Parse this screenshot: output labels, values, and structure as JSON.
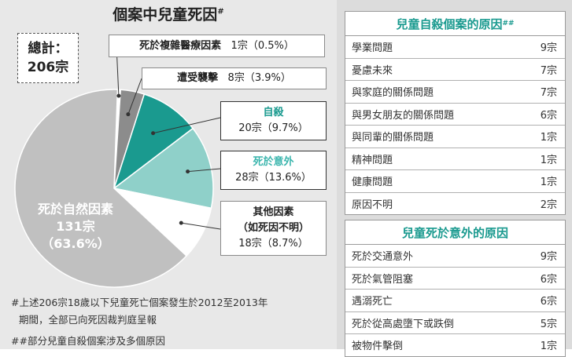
{
  "chart_data": {
    "type": "pie",
    "title": "個案中兒童死因",
    "title_mark": "#",
    "total_label": "總計：",
    "total_value": "206宗",
    "slices": [
      {
        "name": "死於複雜醫療因素",
        "value": 1,
        "count_label": "1宗",
        "pct_label": "（0.5%）",
        "color": "#ffffff"
      },
      {
        "name": "遭受襲擊",
        "value": 8,
        "count_label": "8宗",
        "pct_label": "（3.9%）",
        "color": "#8c8c8c"
      },
      {
        "name": "自殺",
        "value": 20,
        "count_label": "20宗",
        "pct_label": "（9.7%）",
        "color": "#1a9a8f"
      },
      {
        "name": "死於意外",
        "value": 28,
        "count_label": "28宗",
        "pct_label": "（13.6%）",
        "color": "#8fd0c9"
      },
      {
        "name": "其他因素",
        "name2": "（如死因不明）",
        "value": 18,
        "count_label": "18宗",
        "pct_label": "（8.7%）",
        "color": "#ffffff"
      },
      {
        "name": "死於自然因素",
        "value": 131,
        "count_label": "131宗",
        "pct_label": "（63.6%）",
        "color": "#c0c0c0"
      }
    ]
  },
  "footnotes": {
    "line1": "#上述206宗18歲以下兒童死亡個案發生於2012至2013年",
    "line2": "期間，全部已向死因裁判庭呈報",
    "line3": "##部分兒童自殺個案涉及多個原因"
  },
  "suicide_table": {
    "title": "兒童自殺個案的原因",
    "title_mark": "##",
    "rows": [
      {
        "label": "學業問題",
        "value": "9宗"
      },
      {
        "label": "憂慮未來",
        "value": "7宗"
      },
      {
        "label": "與家庭的關係問題",
        "value": "7宗"
      },
      {
        "label": "與男女朋友的關係問題",
        "value": "6宗"
      },
      {
        "label": "與同輩的關係問題",
        "value": "1宗"
      },
      {
        "label": "精神問題",
        "value": "1宗"
      },
      {
        "label": "健康問題",
        "value": "1宗"
      },
      {
        "label": "原因不明",
        "value": "2宗"
      }
    ]
  },
  "accident_table": {
    "title": "兒童死於意外的原因",
    "rows": [
      {
        "label": "死於交通意外",
        "value": "9宗"
      },
      {
        "label": "死於氣管阻塞",
        "value": "6宗"
      },
      {
        "label": "遇溺死亡",
        "value": "6宗"
      },
      {
        "label": "死於從高處墮下或跌倒",
        "value": "5宗"
      },
      {
        "label": "被物件擊倒",
        "value": "1宗"
      }
    ]
  }
}
